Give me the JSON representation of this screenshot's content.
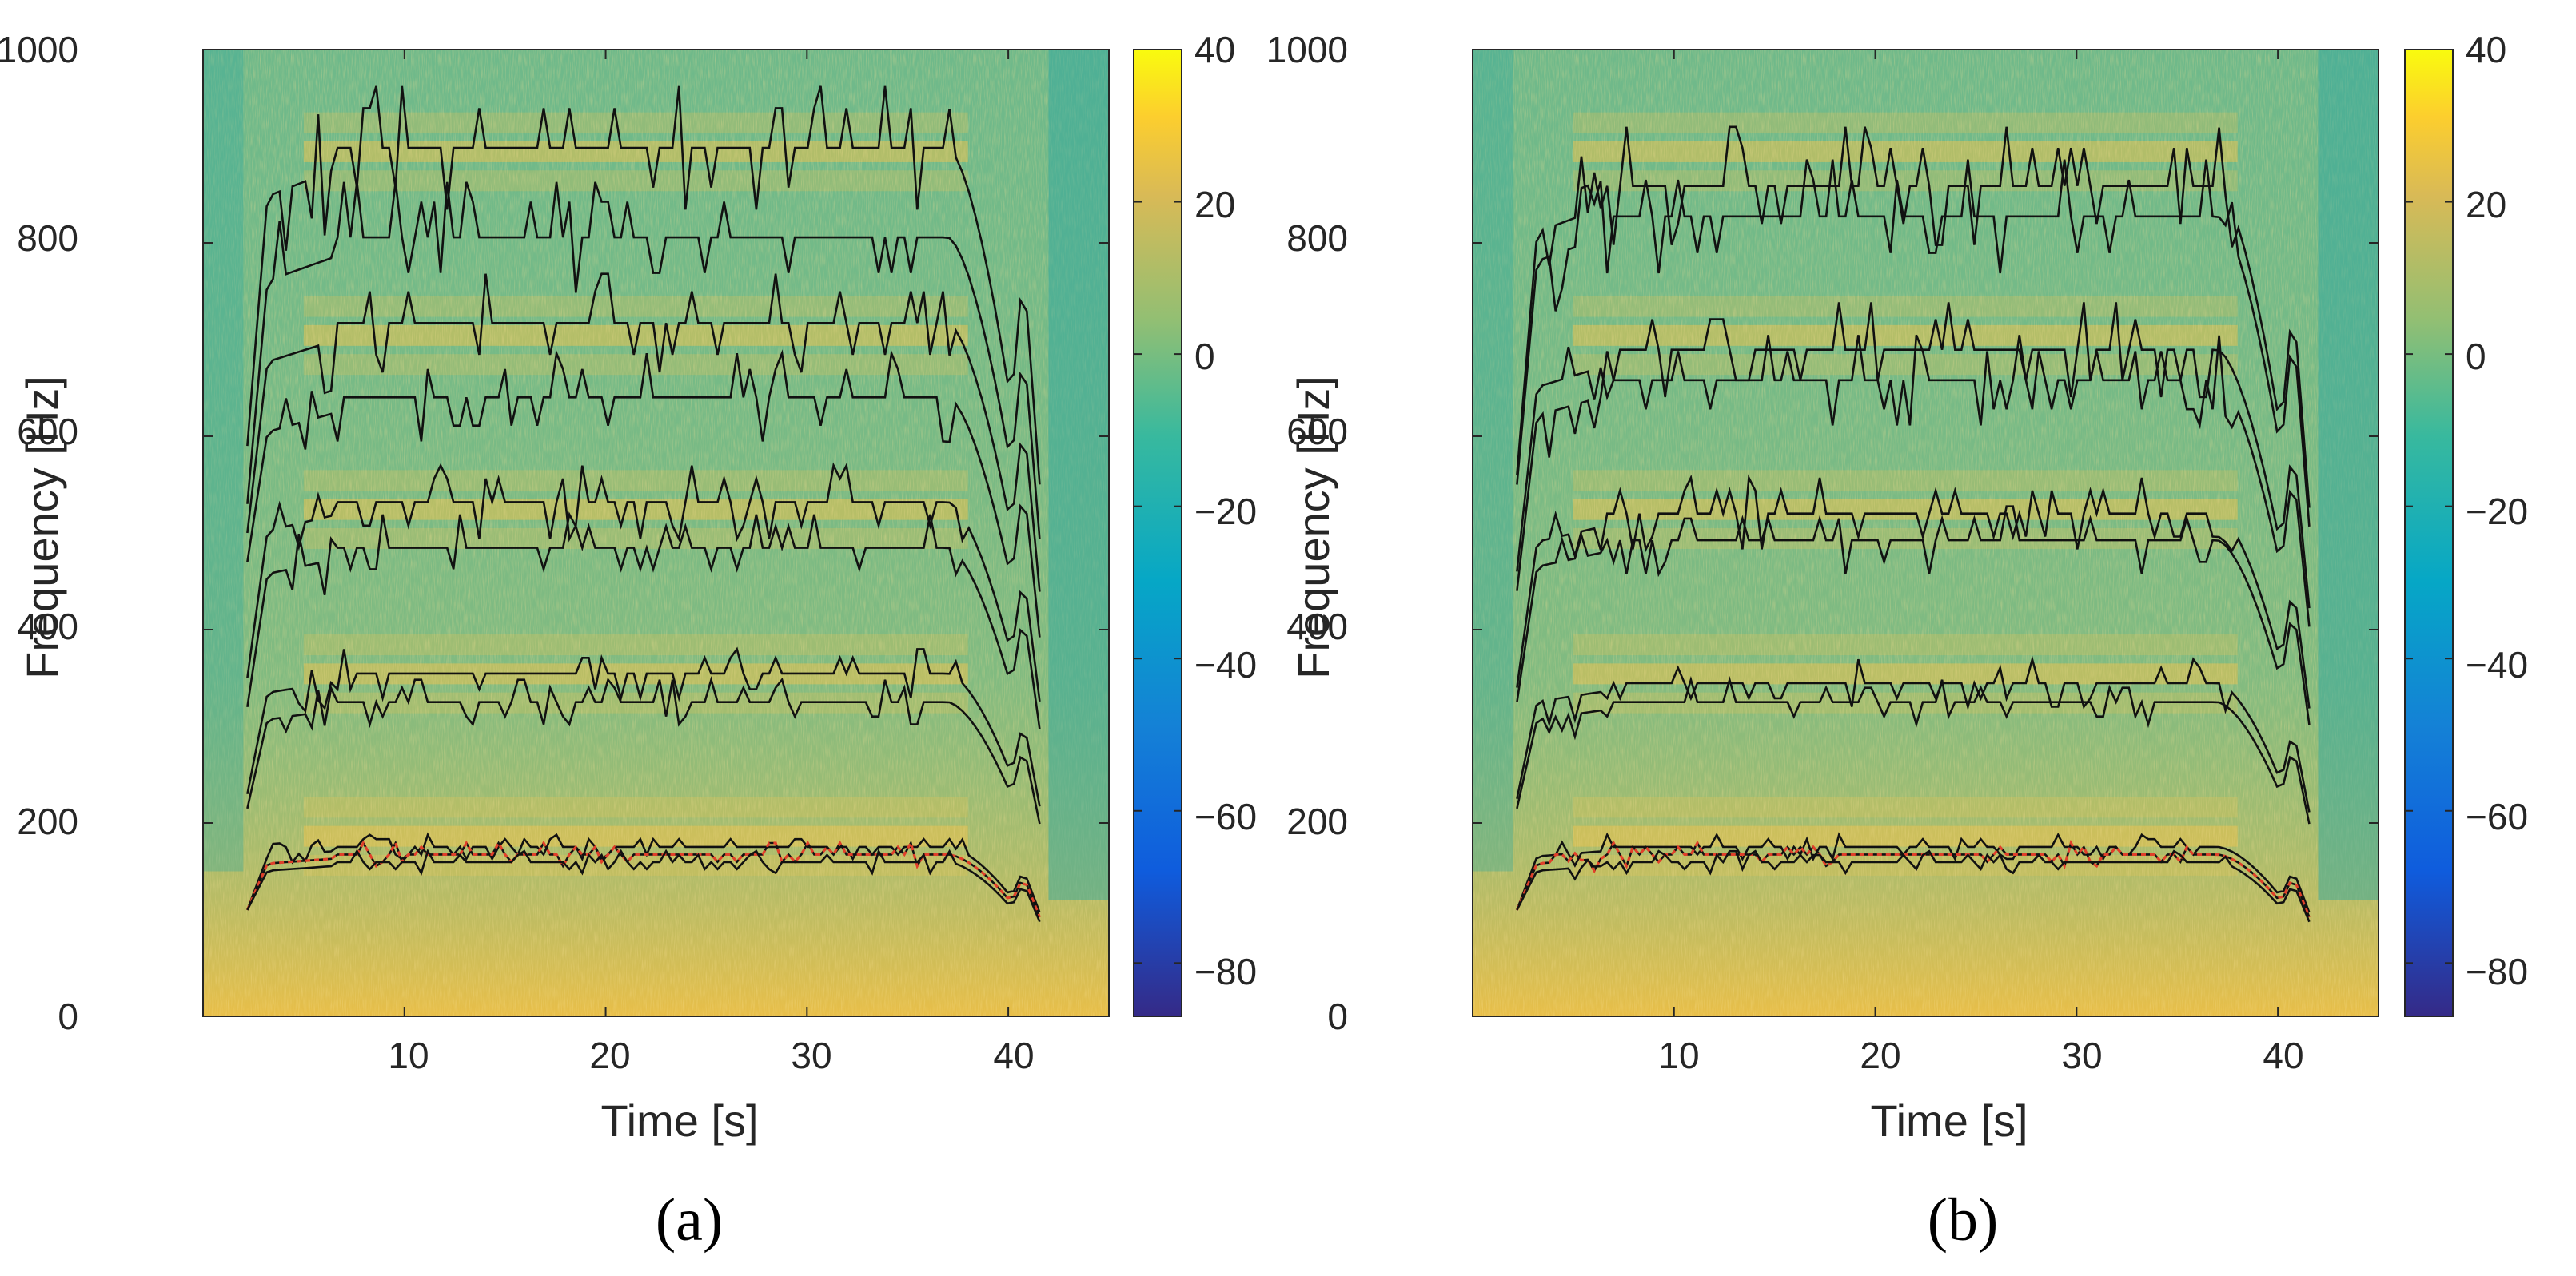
{
  "chart_data": [
    {
      "type": "heatmap",
      "panel_label": "(a)",
      "xlabel": "Time [s]",
      "ylabel": "Frequency [Hz]",
      "xlim": [
        0,
        45
      ],
      "ylim": [
        0,
        1000
      ],
      "xticks": [
        10,
        20,
        30,
        40
      ],
      "yticks": [
        0,
        200,
        400,
        600,
        800,
        1000
      ],
      "colorbar": {
        "min": -87,
        "max": 40,
        "ticks": [
          40,
          20,
          0,
          -20,
          -40,
          -60,
          -80
        ],
        "tick_labels": [
          "40",
          "20",
          "0",
          "−20",
          "−40",
          "−60",
          "−80"
        ]
      },
      "ridge_tracks": [
        {
          "name": "f0 upper",
          "center": 178,
          "start": 110
        },
        {
          "name": "f0 middle",
          "center": 170,
          "start": 110
        },
        {
          "name": "f0 lower",
          "center": 162,
          "start": 110
        },
        {
          "name": "h2 upper",
          "center": 360,
          "start": 230
        },
        {
          "name": "h2 lower",
          "center": 330,
          "start": 215
        },
        {
          "name": "h3 upper",
          "center": 540,
          "start": 350
        },
        {
          "name": "h3 lower",
          "center": 492,
          "start": 320
        },
        {
          "name": "h4 upper",
          "center": 728,
          "start": 500
        },
        {
          "name": "h4 lower",
          "center": 650,
          "start": 470
        },
        {
          "name": "h5 upper",
          "center": 912,
          "start": 590
        },
        {
          "name": "h5 lower",
          "center": 818,
          "start": 530
        }
      ]
    },
    {
      "type": "heatmap",
      "panel_label": "(b)",
      "xlabel": "Time [s]",
      "ylabel": "Frequency [Hz]",
      "xlim": [
        0,
        45
      ],
      "ylim": [
        0,
        1000
      ],
      "xticks": [
        10,
        20,
        30,
        40
      ],
      "yticks": [
        0,
        200,
        400,
        600,
        800,
        1000
      ],
      "colorbar": {
        "min": -87,
        "max": 40,
        "ticks": [
          40,
          20,
          0,
          -20,
          -40,
          -60,
          -80
        ],
        "tick_labels": [
          "40",
          "20",
          "0",
          "−20",
          "−40",
          "−60",
          "−80"
        ]
      },
      "ridge_tracks": [
        {
          "name": "f0 upper",
          "center": 178,
          "start": 110
        },
        {
          "name": "f0 middle",
          "center": 170,
          "start": 110
        },
        {
          "name": "f0 lower",
          "center": 162,
          "start": 110
        },
        {
          "name": "h2 upper",
          "center": 350,
          "start": 225
        },
        {
          "name": "h2 lower",
          "center": 330,
          "start": 215
        },
        {
          "name": "h3 upper",
          "center": 528,
          "start": 340
        },
        {
          "name": "h3 lower",
          "center": 500,
          "start": 325
        },
        {
          "name": "h4 upper",
          "center": 700,
          "start": 460
        },
        {
          "name": "h4 lower",
          "center": 668,
          "start": 440
        },
        {
          "name": "h5 upper",
          "center": 872,
          "start": 560
        },
        {
          "name": "h5 lower",
          "center": 840,
          "start": 550
        }
      ]
    }
  ]
}
